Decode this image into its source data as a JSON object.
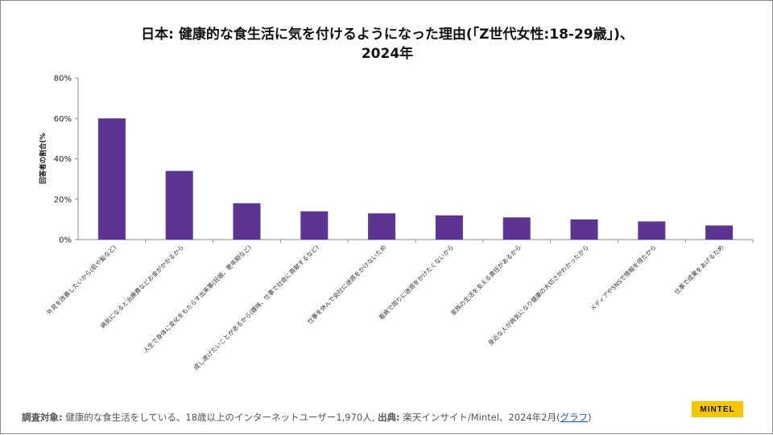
{
  "title": {
    "line1": "日本: 健康的な食生活に気を付けるようになった理由(「Z世代女性:18-29歳」)、",
    "line2": "2024年"
  },
  "chart_data": {
    "type": "bar",
    "title": "日本: 健康的な食生活に気を付けるようになった理由(「Z世代女性:18-29歳」)、2024年",
    "xlabel": "",
    "ylabel": "回答者の割合(%",
    "ylim": [
      0,
      80
    ],
    "yticks": [
      0,
      20,
      40,
      60,
      80
    ],
    "ytick_labels": [
      "0%",
      "20%",
      "40%",
      "60%",
      "80%"
    ],
    "grid": false,
    "bar_color": "#5b3591",
    "categories": [
      "外見を改善したいから(肌や髪など)",
      "病気になると治療費などお金がかかるから",
      "人生で身体に変化をもたらす出来事(妊娠、更年期など)",
      "成し遂げたいことがあるから(趣味、仕事で社会に貢献するなど)",
      "仕事を休んで会社に迷惑をかけないため",
      "看病で周りに迷惑をかけたくないから",
      "家族の生活を支える責任があるから",
      "身近な人が病気になり健康の大切さがわかったから",
      "メディアやSNSで情報を得たから",
      "仕事で成果をあげるため"
    ],
    "values": [
      60,
      34,
      18,
      14,
      13,
      12,
      11,
      10,
      9,
      7
    ]
  },
  "footer": {
    "target_label": "調査対象:",
    "target_text": "健康的な食生活をしている、18歳以上のインターネットユーザー1,970人",
    "source_label": "出典:",
    "source_text": "楽天インサイト/Mintel、2024年2月(",
    "graph_link": "グラフ",
    "close_paren": ")"
  },
  "brand": {
    "name": "MINTEL",
    "color": "#f6c700"
  }
}
